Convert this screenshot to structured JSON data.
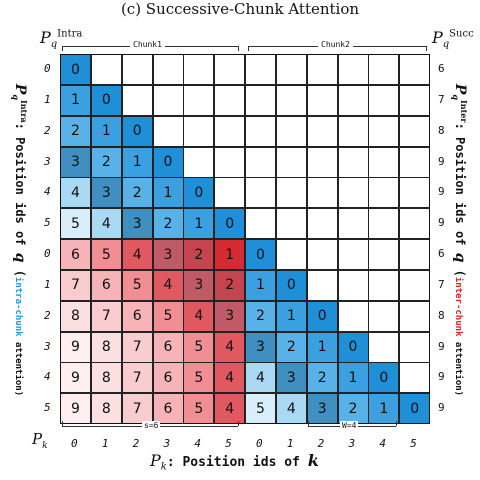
{
  "title": "(c) Successive-Chunk Attention",
  "p_intra_top": {
    "base": "P",
    "sub": "q",
    "sup": "Intra"
  },
  "p_succ_top": {
    "base": "P",
    "sub": "q",
    "sup": "Succ"
  },
  "chunk_labels": [
    "Chunk1",
    "Chunk2"
  ],
  "left_ids": [
    "0",
    "1",
    "2",
    "3",
    "4",
    "5",
    "0",
    "1",
    "2",
    "3",
    "4",
    "5"
  ],
  "right_ids": [
    "6",
    "7",
    "8",
    "9",
    "9",
    "9",
    "6",
    "7",
    "8",
    "9",
    "9",
    "9"
  ],
  "bottom_ids": [
    "0",
    "1",
    "2",
    "3",
    "4",
    "5",
    "0",
    "1",
    "2",
    "3",
    "4",
    "5"
  ],
  "bottom_axis_name": {
    "base": "P",
    "sub": "k"
  },
  "bottom_title": {
    "prefix": "P",
    "sub": "k",
    "text": ": Position ids of ",
    "var": "k"
  },
  "left_axis_title": {
    "prefix": "P",
    "sub": "q",
    "sup": "Intra",
    "text": ": Position ids of ",
    "var": "q",
    "paren_open": " (",
    "colored": "intra-chunk",
    "rest": " attention)"
  },
  "right_axis_title": {
    "prefix": "P",
    "sub": "q",
    "sup": "Inter",
    "text": ": Position ids of ",
    "var": "q",
    "paren_open": " (",
    "colored": "inter-chunk",
    "rest": " attention)"
  },
  "s_label": "s=6",
  "w_label": "W=4",
  "matrix": [
    [
      "0"
    ],
    [
      "1",
      "0"
    ],
    [
      "2",
      "1",
      "0"
    ],
    [
      "3",
      "2",
      "1",
      "0"
    ],
    [
      "4",
      "3",
      "2",
      "1",
      "0"
    ],
    [
      "5",
      "4",
      "3",
      "2",
      "1",
      "0"
    ],
    [
      "6",
      "5",
      "4",
      "3",
      "2",
      "1",
      "0"
    ],
    [
      "7",
      "6",
      "5",
      "4",
      "3",
      "2",
      "1",
      "0"
    ],
    [
      "8",
      "7",
      "6",
      "5",
      "4",
      "3",
      "2",
      "1",
      "0"
    ],
    [
      "9",
      "8",
      "7",
      "6",
      "5",
      "4",
      "3",
      "2",
      "1",
      "0"
    ],
    [
      "9",
      "8",
      "7",
      "6",
      "5",
      "4",
      "4",
      "3",
      "2",
      "1",
      "0"
    ],
    [
      "9",
      "8",
      "7",
      "6",
      "5",
      "4",
      "5",
      "4",
      "3",
      "2",
      "1",
      "0"
    ]
  ],
  "colors": {
    "blue_shades": [
      "#1f8fd8",
      "#3aa0e0",
      "#58b2e8",
      "#3f8fc0",
      "#aad9f4",
      "#d8eefb"
    ],
    "red_shades": [
      "#d01c26",
      "#b84a58",
      "#c07880",
      "#e46a70",
      "#f19aa0",
      "#f8c8cb",
      "#fbe2e3"
    ],
    "intra_text_color": "#1f9ad6",
    "inter_text_color": "#e0202a"
  }
}
